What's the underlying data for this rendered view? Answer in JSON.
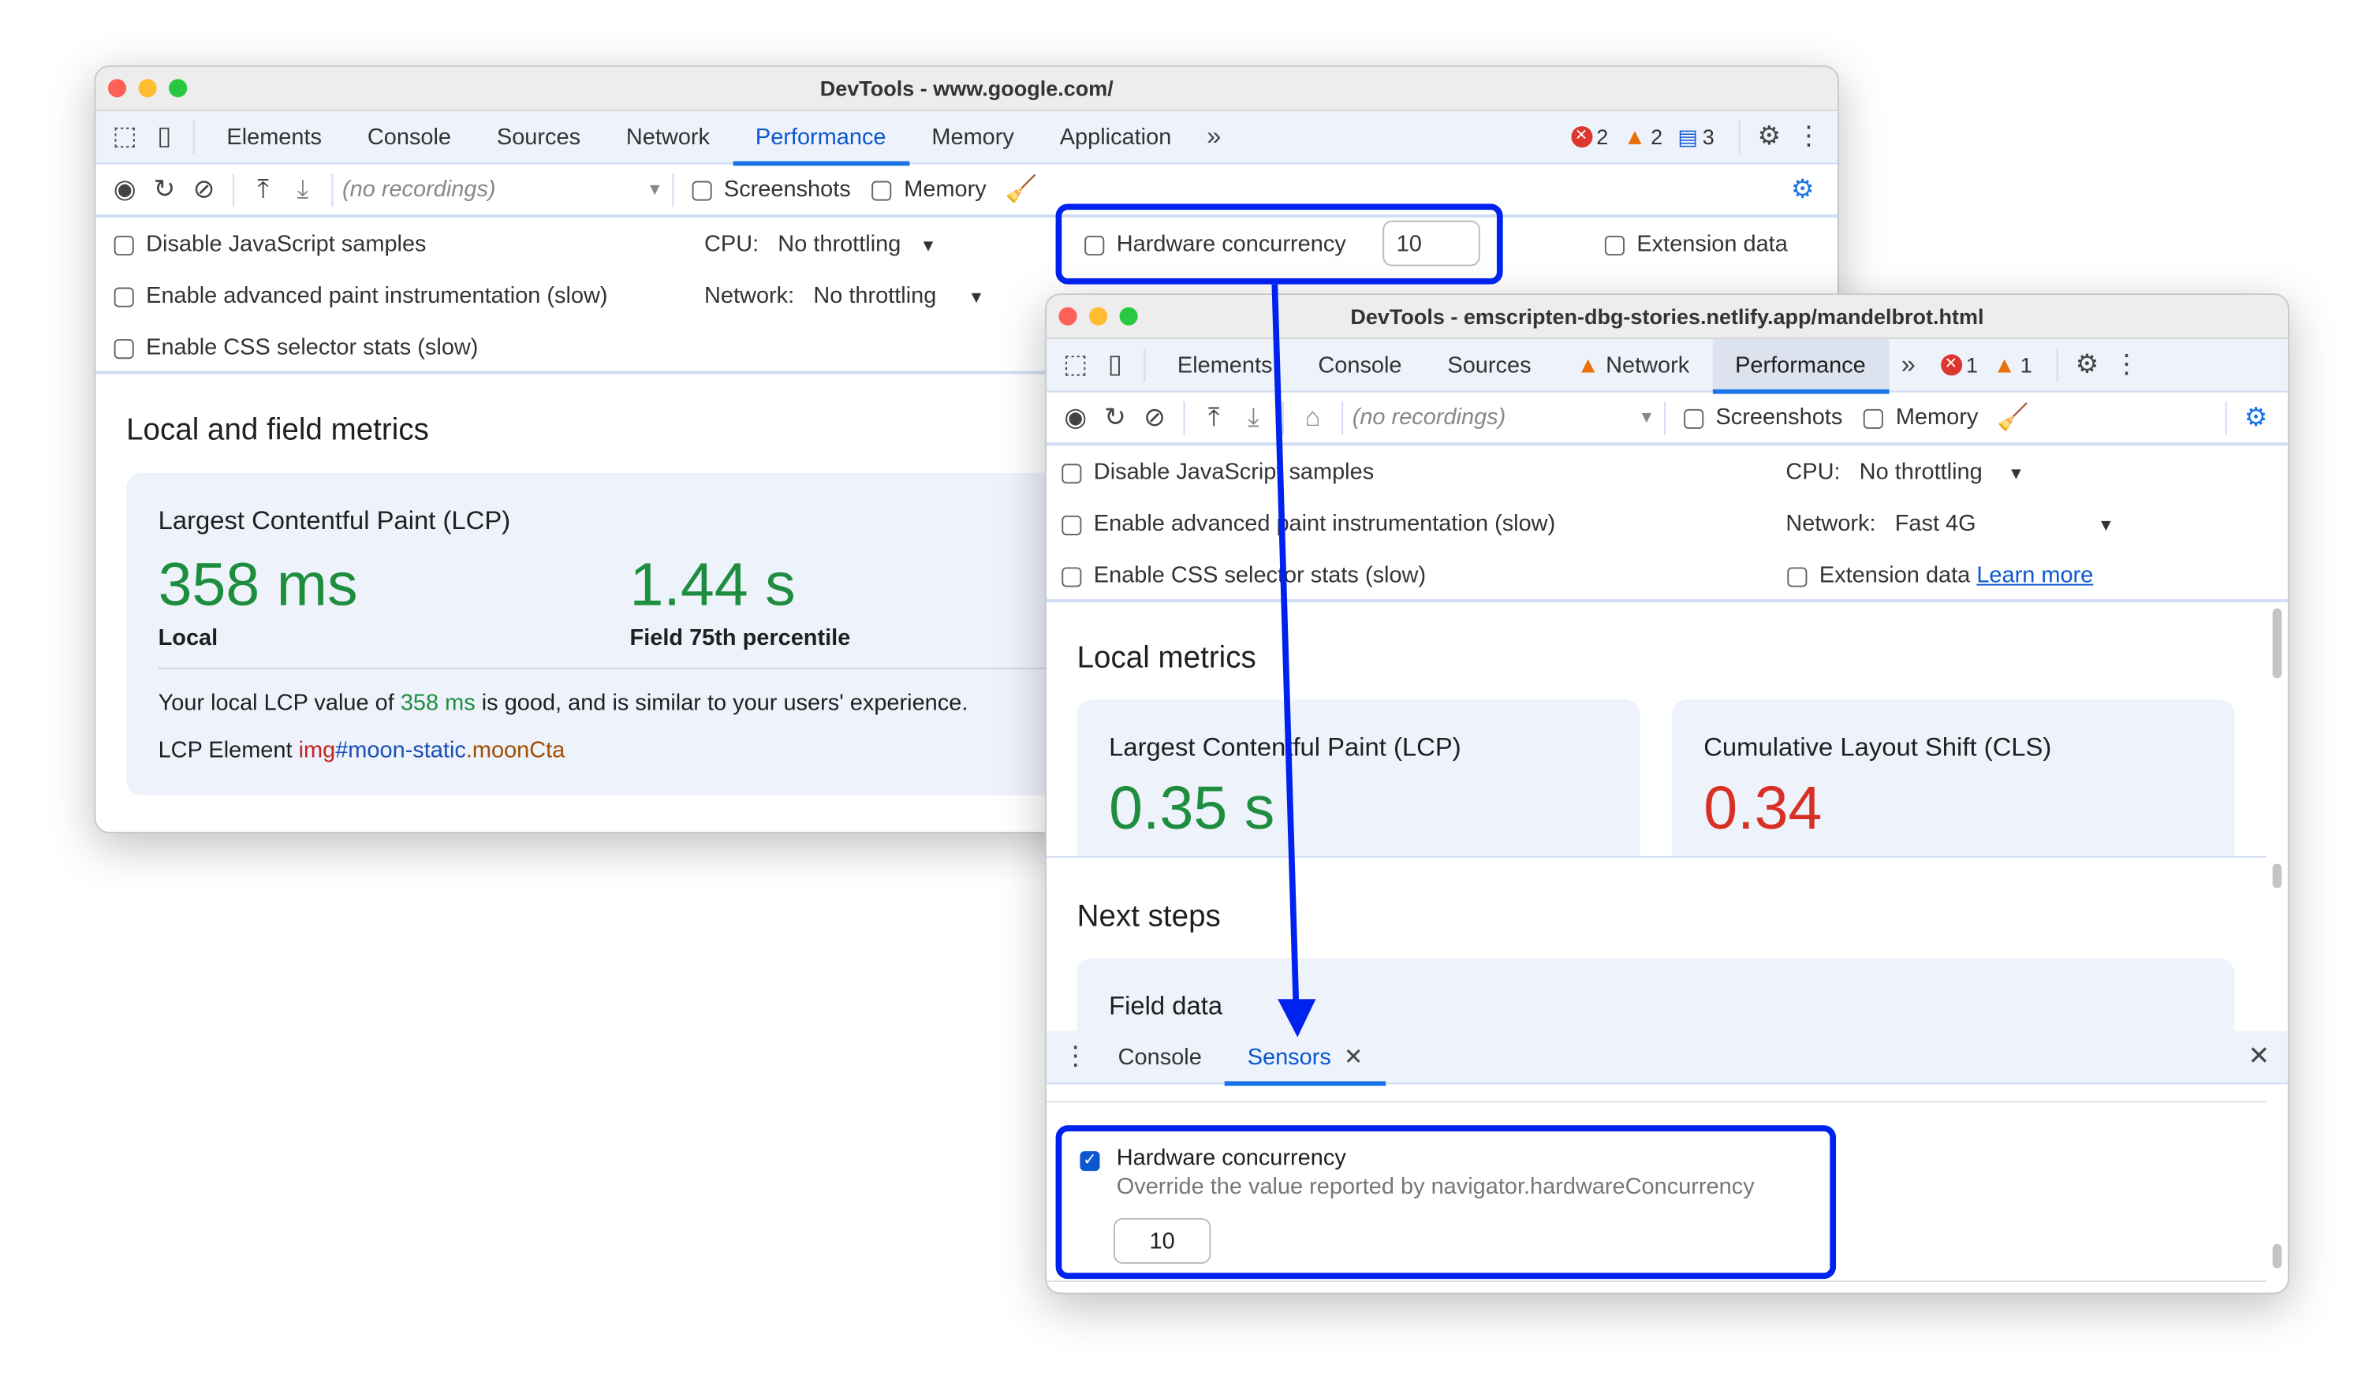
{
  "window1": {
    "title": "DevTools - www.google.com/",
    "tabs": [
      "Elements",
      "Console",
      "Sources",
      "Network",
      "Performance",
      "Memory",
      "Application"
    ],
    "active_tab": "Performance",
    "badges": {
      "errors": "2",
      "warnings": "2",
      "messages": "3"
    },
    "toolbar": {
      "recordings": "(no recordings)",
      "screenshots": "Screenshots",
      "memory": "Memory"
    },
    "settings": {
      "disable_js": "Disable JavaScript samples",
      "adv_paint": "Enable advanced paint instrumentation (slow)",
      "css_stats": "Enable CSS selector stats (slow)",
      "cpu_label": "CPU:",
      "cpu_value": "No throttling",
      "network_label": "Network:",
      "network_value": "No throttling",
      "hw_label": "Hardware concurrency",
      "hw_value": "10",
      "ext_data": "Extension data"
    },
    "section_title": "Local and field metrics",
    "lcp": {
      "title": "Largest Contentful Paint (LCP)",
      "local_value": "358 ms",
      "local_label": "Local",
      "field_value": "1.44 s",
      "field_label": "Field 75th percentile",
      "desc_prefix": "Your local LCP value of ",
      "desc_value": "358 ms",
      "desc_suffix": " is good, and is similar to your users' experience.",
      "element_label": "LCP Element",
      "element_tag": "img",
      "element_id": "#moon-static",
      "element_class": ".moonCta"
    }
  },
  "window2": {
    "title": "DevTools - emscripten-dbg-stories.netlify.app/mandelbrot.html",
    "tabs": [
      "Elements",
      "Console",
      "Sources",
      "Network",
      "Performance"
    ],
    "active_tab": "Performance",
    "badges": {
      "errors": "1",
      "warnings": "1"
    },
    "toolbar": {
      "recordings": "(no recordings)",
      "screenshots": "Screenshots",
      "memory": "Memory"
    },
    "settings": {
      "disable_js": "Disable JavaScript samples",
      "adv_paint": "Enable advanced paint instrumentation (slow)",
      "css_stats": "Enable CSS selector stats (slow)",
      "cpu_label": "CPU:",
      "cpu_value": "No throttling",
      "network_label": "Network:",
      "network_value": "Fast 4G",
      "ext_data": "Extension data",
      "learn_more": "Learn more"
    },
    "section_title": "Local metrics",
    "lcp": {
      "title": "Largest Contentful Paint (LCP)",
      "value": "0.35 s"
    },
    "cls": {
      "title": "Cumulative Layout Shift (CLS)",
      "value": "0.34"
    },
    "next_steps": "Next steps",
    "field_data": "Field data",
    "drawer": {
      "tabs": [
        "Console",
        "Sensors"
      ],
      "active": "Sensors",
      "hw_title": "Hardware concurrency",
      "hw_desc": "Override the value reported by navigator.hardwareConcurrency",
      "hw_value": "10",
      "hw_checked": true
    }
  },
  "colors": {
    "accent": "#0b57d0",
    "good": "#1e8e3e",
    "poor": "#d93025",
    "highlight": "#0022ee"
  }
}
